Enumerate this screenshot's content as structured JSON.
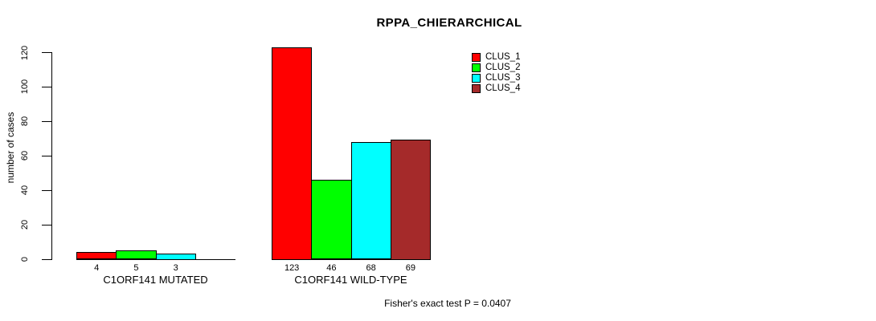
{
  "title": "RPPA_CHIERARCHICAL",
  "y_axis_label": "number of cases",
  "annotation": "Fisher's exact test P = 0.0407",
  "colors": {
    "bar_border": "#000000",
    "text": "#000000",
    "background": "#ffffff"
  },
  "chart_data": {
    "type": "bar",
    "title": "RPPA_CHIERARCHICAL",
    "xlabel": "",
    "ylabel": "number of cases",
    "ylim": [
      0,
      120
    ],
    "yticks": [
      0,
      20,
      40,
      60,
      80,
      100,
      120
    ],
    "grid": false,
    "legend_position": "top-right",
    "categories": [
      "C1ORF141 MUTATED",
      "C1ORF141 WILD-TYPE"
    ],
    "series": [
      {
        "name": "CLUS_1",
        "color": "#FF0000",
        "values": [
          4,
          123
        ]
      },
      {
        "name": "CLUS_2",
        "color": "#00FF00",
        "values": [
          5,
          46
        ]
      },
      {
        "name": "CLUS_3",
        "color": "#00FFFF",
        "values": [
          3,
          68
        ]
      },
      {
        "name": "CLUS_4",
        "color": "#A52A2A",
        "values": [
          0,
          69
        ]
      }
    ],
    "bar_value_labels_shown": [
      "4",
      "5",
      "3",
      "123",
      "46",
      "68",
      "69"
    ],
    "annotation": "Fisher's exact test P = 0.0407"
  }
}
